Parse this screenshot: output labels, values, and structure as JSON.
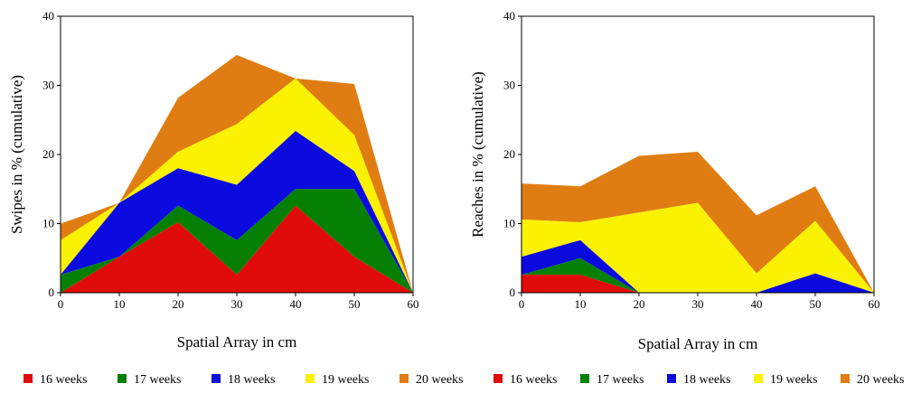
{
  "colors": {
    "16 weeks": "#e00b0b",
    "17 weeks": "#058005",
    "18 weeks": "#0b0bdf",
    "19 weeks": "#fbf102",
    "20 weeks": "#e07d12"
  },
  "chart_data": [
    {
      "type": "area",
      "stacked": true,
      "x": [
        0,
        10,
        20,
        30,
        40,
        50,
        60
      ],
      "xlabel": "Spatial Array in cm",
      "ylabel": "Swipes in % (cumulative)",
      "xlim": [
        0,
        60
      ],
      "ylim": [
        0,
        40
      ],
      "xticks": [
        0,
        10,
        20,
        30,
        40,
        50,
        60
      ],
      "yticks": [
        0,
        10,
        20,
        30,
        40
      ],
      "grid": false,
      "legend": "bottom",
      "series": [
        {
          "name": "16 weeks",
          "values": [
            0,
            5.2,
            10.2,
            2.6,
            12.6,
            5.2,
            0
          ]
        },
        {
          "name": "17 weeks",
          "values": [
            2.6,
            0,
            2.4,
            5.0,
            2.4,
            9.8,
            0
          ]
        },
        {
          "name": "18 weeks",
          "values": [
            0,
            7.8,
            5.4,
            8.0,
            8.4,
            2.6,
            0
          ]
        },
        {
          "name": "19 weeks",
          "values": [
            5.0,
            0,
            2.4,
            8.8,
            7.6,
            5.2,
            0
          ]
        },
        {
          "name": "20 weeks",
          "values": [
            2.4,
            0,
            7.8,
            10.0,
            0,
            7.4,
            0
          ]
        }
      ]
    },
    {
      "type": "area",
      "stacked": true,
      "x": [
        0,
        10,
        20,
        30,
        40,
        50,
        60
      ],
      "xlabel": "Spatial Array in cm",
      "ylabel": "Reaches in % (cumulative)",
      "xlim": [
        0,
        60
      ],
      "ylim": [
        0,
        40
      ],
      "xticks": [
        0,
        10,
        20,
        30,
        40,
        50,
        60
      ],
      "yticks": [
        0,
        10,
        20,
        30,
        40
      ],
      "grid": false,
      "legend": "bottom",
      "series": [
        {
          "name": "16 weeks",
          "values": [
            2.6,
            2.6,
            0,
            0,
            0,
            0,
            0
          ]
        },
        {
          "name": "17 weeks",
          "values": [
            0,
            2.4,
            0,
            0,
            0,
            0,
            0
          ]
        },
        {
          "name": "18 weeks",
          "values": [
            2.6,
            2.6,
            0,
            0,
            0,
            2.8,
            0
          ]
        },
        {
          "name": "19 weeks",
          "values": [
            5.4,
            2.6,
            11.6,
            13.0,
            2.8,
            7.6,
            0
          ]
        },
        {
          "name": "20 weeks",
          "values": [
            5.2,
            5.2,
            8.2,
            7.4,
            8.4,
            5.0,
            0
          ]
        }
      ]
    }
  ]
}
